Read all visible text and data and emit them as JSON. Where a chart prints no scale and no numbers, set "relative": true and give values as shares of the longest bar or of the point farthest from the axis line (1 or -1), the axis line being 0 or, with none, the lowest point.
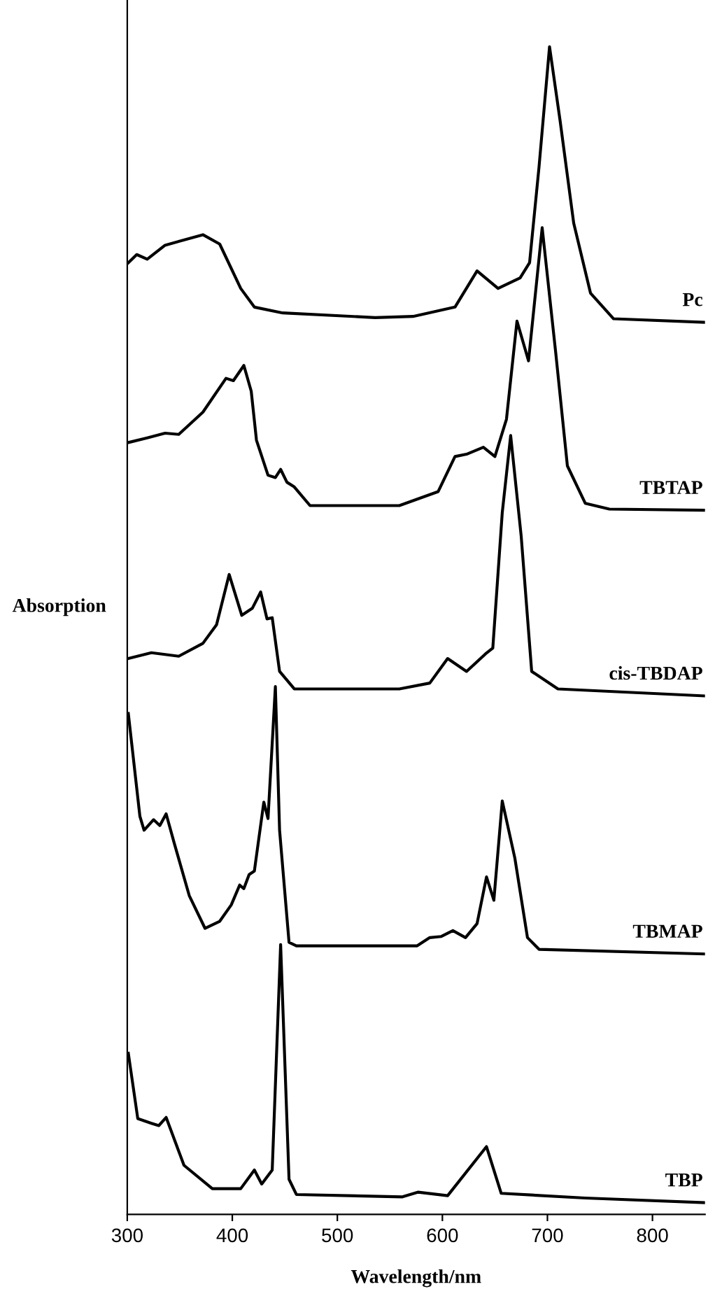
{
  "chart_data": {
    "type": "line",
    "relative": true,
    "xlabel": "Wavelength/nm",
    "ylabel": "Absorption",
    "xlim": [
      300,
      850
    ],
    "xticks": [
      300,
      400,
      500,
      600,
      700,
      800
    ],
    "grid": false,
    "legend": false,
    "marker": "none",
    "line_style": "solid",
    "series": [
      {
        "name": "Pc",
        "color": "#000000",
        "x": [
          301,
          309,
          319,
          336,
          372,
          388,
          408,
          421,
          448,
          536,
          572,
          612,
          633,
          653,
          674,
          683,
          692,
          702,
          712,
          725,
          741,
          763,
          850
        ],
        "values": [
          0.815,
          0.822,
          0.818,
          0.83,
          0.839,
          0.831,
          0.793,
          0.777,
          0.772,
          0.768,
          0.769,
          0.777,
          0.808,
          0.793,
          0.802,
          0.815,
          0.897,
          1.0,
          0.937,
          0.849,
          0.789,
          0.767,
          0.764
        ]
      },
      {
        "name": "TBTAP",
        "color": "#000000",
        "x": [
          301,
          319,
          336,
          349,
          372,
          394,
          401,
          411,
          418,
          423,
          434,
          441,
          446,
          452,
          459,
          474,
          559,
          596,
          612,
          623,
          639,
          650,
          661,
          671,
          682,
          695,
          708,
          719,
          736,
          759,
          850
        ],
        "values": [
          0.661,
          0.665,
          0.669,
          0.668,
          0.687,
          0.716,
          0.714,
          0.727,
          0.705,
          0.663,
          0.633,
          0.631,
          0.638,
          0.627,
          0.623,
          0.607,
          0.607,
          0.619,
          0.649,
          0.651,
          0.657,
          0.649,
          0.681,
          0.765,
          0.731,
          0.845,
          0.737,
          0.641,
          0.609,
          0.604,
          0.603
        ]
      },
      {
        "name": "cis-TBDAP",
        "color": "#000000",
        "x": [
          301,
          323,
          349,
          372,
          385,
          397,
          409,
          419,
          427,
          433,
          438,
          445,
          459,
          559,
          588,
          605,
          623,
          641,
          648,
          657,
          665,
          675,
          685,
          710,
          850
        ],
        "values": [
          0.476,
          0.481,
          0.478,
          0.489,
          0.505,
          0.548,
          0.513,
          0.519,
          0.533,
          0.51,
          0.511,
          0.465,
          0.45,
          0.45,
          0.455,
          0.476,
          0.465,
          0.48,
          0.485,
          0.601,
          0.667,
          0.581,
          0.465,
          0.45,
          0.444
        ]
      },
      {
        "name": "TBMAP",
        "color": "#000000",
        "x": [
          301,
          312,
          316,
          325,
          331,
          337,
          345,
          359,
          374,
          388,
          399,
          407,
          411,
          416,
          421,
          430,
          434,
          441,
          445,
          454,
          461,
          576,
          588,
          599,
          610,
          622,
          633,
          642,
          649,
          657,
          669,
          681,
          692,
          850
        ],
        "values": [
          0.429,
          0.341,
          0.329,
          0.338,
          0.333,
          0.343,
          0.317,
          0.273,
          0.245,
          0.251,
          0.265,
          0.282,
          0.279,
          0.291,
          0.294,
          0.353,
          0.339,
          0.452,
          0.329,
          0.233,
          0.23,
          0.23,
          0.237,
          0.238,
          0.243,
          0.237,
          0.249,
          0.289,
          0.269,
          0.354,
          0.305,
          0.237,
          0.227,
          0.223
        ]
      },
      {
        "name": "TBP",
        "color": "#000000",
        "x": [
          301,
          310,
          323,
          330,
          337,
          354,
          381,
          408,
          421,
          428,
          438,
          446,
          454,
          461,
          562,
          577,
          605,
          642,
          656,
          736,
          850
        ],
        "values": [
          0.138,
          0.082,
          0.078,
          0.076,
          0.083,
          0.042,
          0.022,
          0.022,
          0.038,
          0.026,
          0.038,
          0.231,
          0.03,
          0.017,
          0.015,
          0.019,
          0.016,
          0.058,
          0.018,
          0.014,
          0.01
        ]
      }
    ]
  }
}
